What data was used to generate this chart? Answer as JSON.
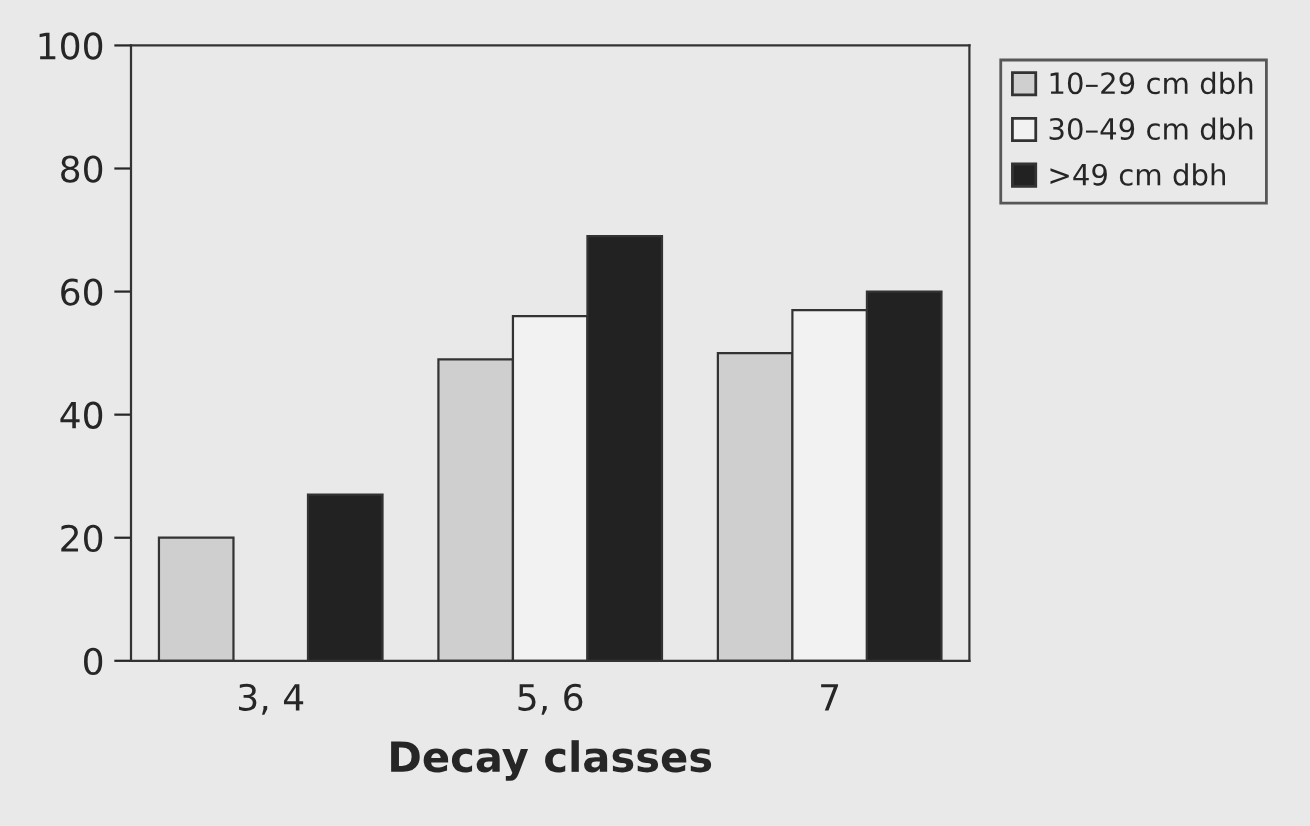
{
  "chart_data": {
    "type": "bar",
    "xlabel": "Decay classes",
    "categories": [
      "3, 4",
      "5, 6",
      "7"
    ],
    "series": [
      {
        "name": "10–29 cm dbh",
        "color": "#cfcfcf",
        "values": [
          20,
          49,
          50
        ]
      },
      {
        "name": "30–49 cm dbh",
        "color": "#f2f2f2",
        "values": [
          null,
          56,
          57
        ]
      },
      {
        "name": ">49 cm dbh",
        "color": "#222222",
        "values": [
          27,
          69,
          60
        ]
      }
    ],
    "ylim": [
      0,
      100
    ],
    "yticks": [
      0,
      20,
      40,
      60,
      80,
      100
    ],
    "grid": false,
    "legend": "top right"
  }
}
